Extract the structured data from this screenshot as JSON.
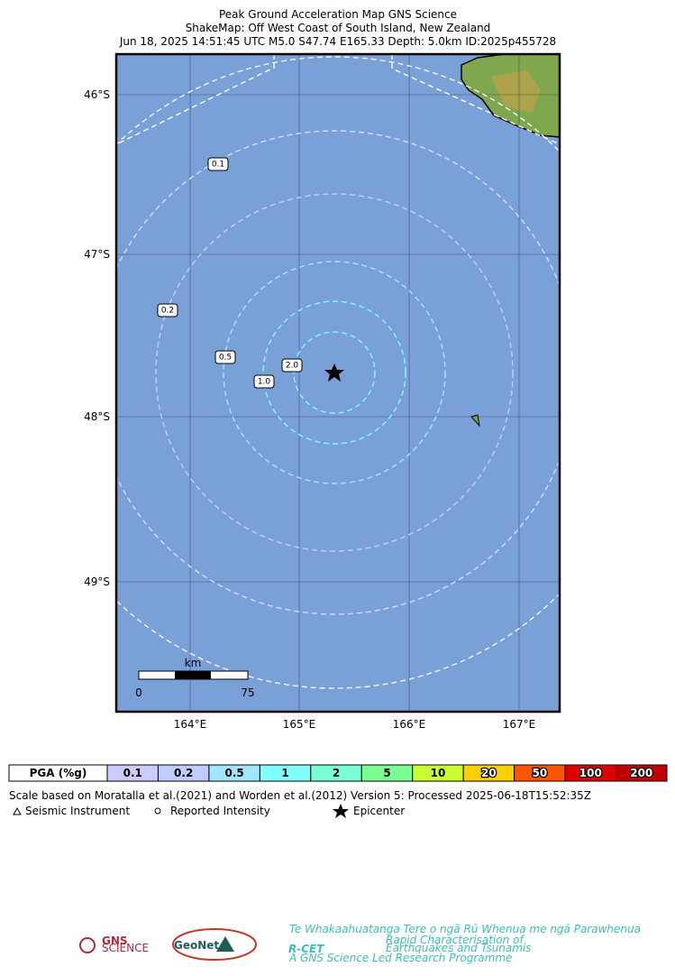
{
  "header": {
    "title": "Peak Ground Acceleration Map GNS Science",
    "subtitle": "ShakeMap: Off West Coast of South Island, New Zealand",
    "event": "Jun 18, 2025 14:51:45 UTC M5.0 S47.74 E165.33 Depth: 5.0km ID:2025p455728"
  },
  "map": {
    "lat_labels": [
      "46°S",
      "47°S",
      "48°S",
      "49°S"
    ],
    "lon_labels": [
      "164°E",
      "165°E",
      "166°E",
      "167°E"
    ],
    "contour_labels": [
      "0.1",
      "0.2",
      "0.5",
      "1.0",
      "2.0"
    ],
    "scale_bar": {
      "unit": "km",
      "start": "0",
      "end": "75"
    }
  },
  "pga_legend": {
    "label": "PGA (%g)",
    "bins": [
      {
        "label": "0.1",
        "color": "#ccccff"
      },
      {
        "label": "0.2",
        "color": "#bfccff"
      },
      {
        "label": "0.5",
        "color": "#a0e6ff"
      },
      {
        "label": "1",
        "color": "#80ffff"
      },
      {
        "label": "2",
        "color": "#7affd4"
      },
      {
        "label": "5",
        "color": "#7aff93"
      },
      {
        "label": "10",
        "color": "#ccff33"
      },
      {
        "label": "20",
        "color": "#ffd000"
      },
      {
        "label": "50",
        "color": "#ff5500"
      },
      {
        "label": "100",
        "color": "#e00000"
      },
      {
        "label": "200",
        "color": "#c00000"
      }
    ]
  },
  "notes": {
    "scale_note": "Scale based on Moratalla et al.(2021) and Worden et al.(2012)   Version 5: Processed 2025-06-18T15:52:35Z",
    "seismic_instrument": "Seismic Instrument",
    "reported_intensity": "Reported Intensity",
    "epicenter": "Epicenter"
  },
  "logos": {
    "gns": "GNS",
    "gns_sub": "SCIENCE",
    "geonet": "GeoNet",
    "rcet_maori": "Te Whakaahuatanga Tere o ngā Rū Whenua me ngā Parawhenua",
    "rcet": "R-CET",
    "rcet_desc1": "Rapid Characterisation of",
    "rcet_desc2": "Earthquakes and Tsunamis",
    "rcet_foot": "A GNS Science Led Research Programme"
  }
}
